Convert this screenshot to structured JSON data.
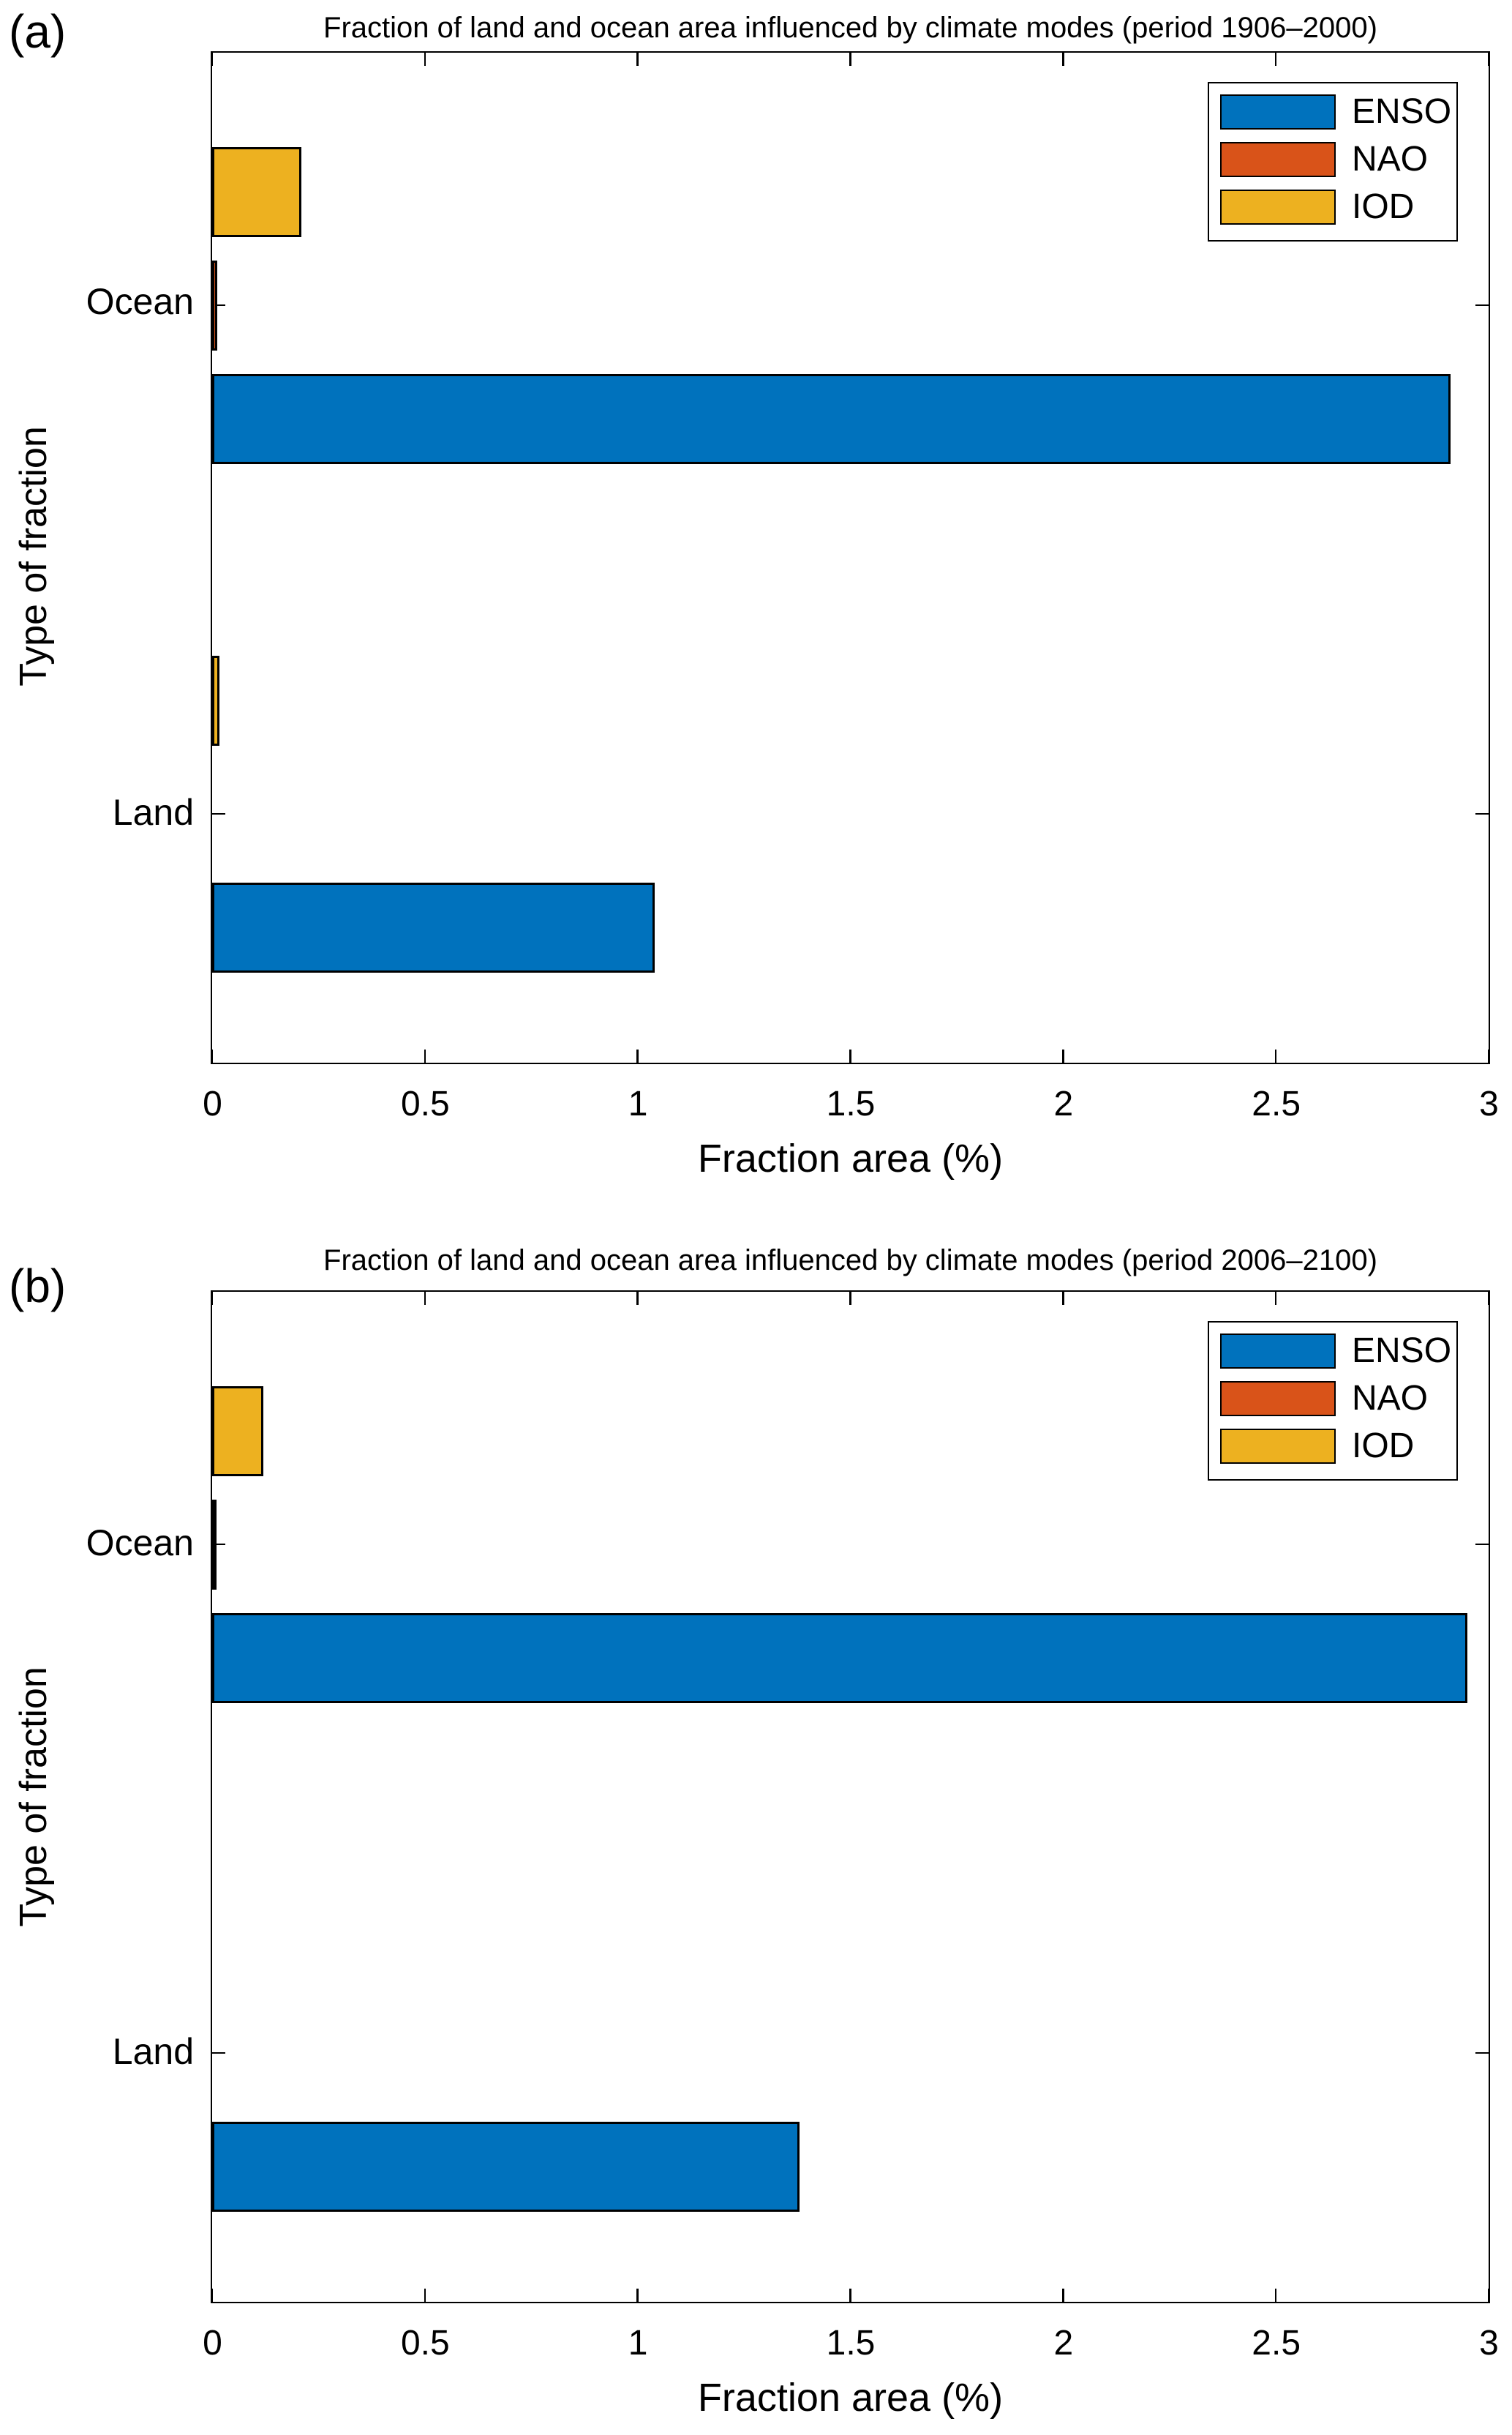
{
  "figure": {
    "panel_labels": [
      "(a)",
      "(b)"
    ],
    "background_color": "#ffffff",
    "axis_color": "#000000"
  },
  "chart_data": [
    {
      "type": "bar",
      "orientation": "horizontal",
      "title": "Fraction of land and ocean area influenced by climate modes (period 1906–2000)",
      "xlabel": "Fraction area (%)",
      "ylabel": "Type of fraction",
      "categories": [
        "Ocean",
        "Land"
      ],
      "series": [
        {
          "name": "ENSO",
          "color": "#0072BD",
          "values": [
            2.91,
            1.04
          ]
        },
        {
          "name": "NAO",
          "color": "#D95319",
          "values": [
            0.012,
            0
          ]
        },
        {
          "name": "IOD",
          "color": "#EDB120",
          "values": [
            0.21,
            0.018
          ]
        }
      ],
      "xlim": [
        0,
        3
      ],
      "xticks": [
        0,
        0.5,
        1,
        1.5,
        2,
        2.5,
        3
      ],
      "grid": false,
      "legend_position": "top-right"
    },
    {
      "type": "bar",
      "orientation": "horizontal",
      "title": "Fraction of land and ocean area influenced by climate modes (period 2006–2100)",
      "xlabel": "Fraction area (%)",
      "ylabel": "Type of fraction",
      "categories": [
        "Ocean",
        "Land"
      ],
      "series": [
        {
          "name": "ENSO",
          "color": "#0072BD",
          "values": [
            2.95,
            1.38
          ]
        },
        {
          "name": "NAO",
          "color": "#D95319",
          "values": [
            0.005,
            0
          ]
        },
        {
          "name": "IOD",
          "color": "#EDB120",
          "values": [
            0.12,
            0
          ]
        }
      ],
      "xlim": [
        0,
        3
      ],
      "xticks": [
        0,
        0.5,
        1,
        1.5,
        2,
        2.5,
        3
      ],
      "grid": false,
      "legend_position": "top-right"
    }
  ]
}
